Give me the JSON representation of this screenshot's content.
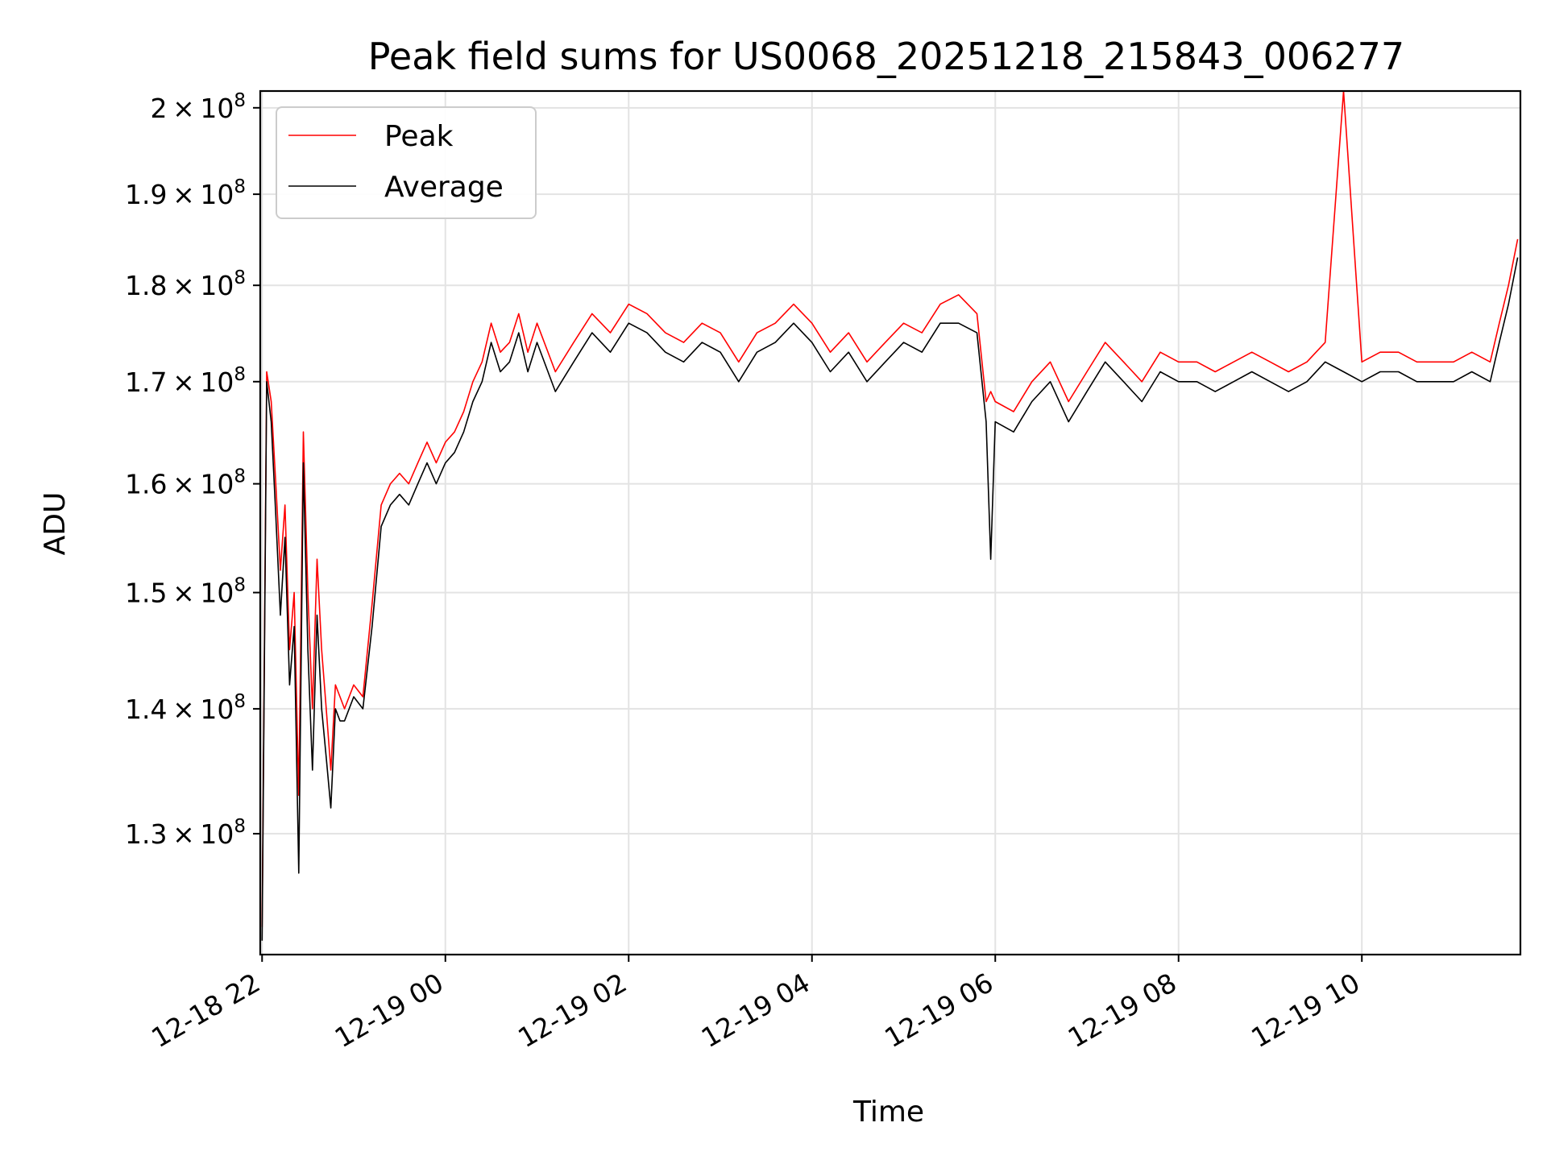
{
  "chart_data": {
    "type": "line",
    "title": "Peak field sums for US0068_20251218_215843_006277",
    "xlabel": "Time",
    "ylabel": "ADU",
    "yscale": "log",
    "ylim": [
      121000000,
      202000000
    ],
    "xlim_hours": [
      -0.02,
      13.73
    ],
    "grid": true,
    "legend_location": "top-left",
    "x_tick_labels": [
      "12-18 22",
      "12-19 00",
      "12-19 02",
      "12-19 04",
      "12-19 06",
      "12-19 08",
      "12-19 10"
    ],
    "x_tick_hours": [
      0,
      2,
      4,
      6,
      8,
      10,
      12
    ],
    "y_ticks": [
      {
        "value": 130000000,
        "mantissa": "1.3",
        "exponent": "8"
      },
      {
        "value": 140000000,
        "mantissa": "1.4",
        "exponent": "8"
      },
      {
        "value": 150000000,
        "mantissa": "1.5",
        "exponent": "8"
      },
      {
        "value": 160000000,
        "mantissa": "1.6",
        "exponent": "8"
      },
      {
        "value": 170000000,
        "mantissa": "1.7",
        "exponent": "8"
      },
      {
        "value": 180000000,
        "mantissa": "1.8",
        "exponent": "8"
      },
      {
        "value": 190000000,
        "mantissa": "1.9",
        "exponent": "8"
      },
      {
        "value": 200000000,
        "mantissa": "2",
        "exponent": "8"
      }
    ],
    "x_hours": [
      0.0,
      0.05,
      0.1,
      0.15,
      0.2,
      0.25,
      0.3,
      0.35,
      0.4,
      0.45,
      0.5,
      0.55,
      0.6,
      0.65,
      0.7,
      0.75,
      0.8,
      0.85,
      0.9,
      1.0,
      1.1,
      1.2,
      1.3,
      1.4,
      1.5,
      1.6,
      1.7,
      1.8,
      1.9,
      2.0,
      2.1,
      2.2,
      2.3,
      2.4,
      2.5,
      2.6,
      2.7,
      2.8,
      2.9,
      3.0,
      3.2,
      3.4,
      3.6,
      3.8,
      4.0,
      4.2,
      4.4,
      4.6,
      4.8,
      5.0,
      5.2,
      5.4,
      5.6,
      5.8,
      6.0,
      6.2,
      6.4,
      6.6,
      6.8,
      7.0,
      7.2,
      7.4,
      7.6,
      7.8,
      7.9,
      7.95,
      8.0,
      8.2,
      8.4,
      8.6,
      8.8,
      9.0,
      9.2,
      9.4,
      9.6,
      9.8,
      10.0,
      10.2,
      10.4,
      10.6,
      10.8,
      11.0,
      11.2,
      11.4,
      11.6,
      11.8,
      12.0,
      12.2,
      12.4,
      12.6,
      12.8,
      13.0,
      13.2,
      13.4,
      13.5,
      13.6,
      13.7
    ],
    "series": [
      {
        "name": "Peak",
        "color": "#ff0000",
        "values": [
          123000000,
          171000000,
          168000000,
          160000000,
          152000000,
          158000000,
          145000000,
          150000000,
          133000000,
          165000000,
          150000000,
          140000000,
          153000000,
          145000000,
          140000000,
          135000000,
          142000000,
          141000000,
          140000000,
          142000000,
          141000000,
          149000000,
          158000000,
          160000000,
          161000000,
          160000000,
          162000000,
          164000000,
          162000000,
          164000000,
          165000000,
          167000000,
          170000000,
          172000000,
          176000000,
          173000000,
          174000000,
          177000000,
          173000000,
          176000000,
          171000000,
          174000000,
          177000000,
          175000000,
          178000000,
          177000000,
          175000000,
          174000000,
          176000000,
          175000000,
          172000000,
          175000000,
          176000000,
          178000000,
          176000000,
          173000000,
          175000000,
          172000000,
          174000000,
          176000000,
          175000000,
          178000000,
          179000000,
          177000000,
          168000000,
          169000000,
          168000000,
          167000000,
          170000000,
          172000000,
          168000000,
          171000000,
          174000000,
          172000000,
          170000000,
          173000000,
          172000000,
          172000000,
          171000000,
          172000000,
          173000000,
          172000000,
          171000000,
          172000000,
          174000000,
          202000000,
          172000000,
          173000000,
          173000000,
          172000000,
          172000000,
          172000000,
          173000000,
          172000000,
          176000000,
          180000000,
          185000000
        ]
      },
      {
        "name": "Average",
        "color": "#000000",
        "values": [
          122000000,
          170000000,
          166000000,
          157000000,
          148000000,
          155000000,
          142000000,
          147000000,
          127000000,
          162000000,
          145000000,
          135000000,
          148000000,
          140000000,
          136000000,
          132000000,
          140000000,
          139000000,
          139000000,
          141000000,
          140000000,
          147000000,
          156000000,
          158000000,
          159000000,
          158000000,
          160000000,
          162000000,
          160000000,
          162000000,
          163000000,
          165000000,
          168000000,
          170000000,
          174000000,
          171000000,
          172000000,
          175000000,
          171000000,
          174000000,
          169000000,
          172000000,
          175000000,
          173000000,
          176000000,
          175000000,
          173000000,
          172000000,
          174000000,
          173000000,
          170000000,
          173000000,
          174000000,
          176000000,
          174000000,
          171000000,
          173000000,
          170000000,
          172000000,
          174000000,
          173000000,
          176000000,
          176000000,
          175000000,
          166000000,
          153000000,
          166000000,
          165000000,
          168000000,
          170000000,
          166000000,
          169000000,
          172000000,
          170000000,
          168000000,
          171000000,
          170000000,
          170000000,
          169000000,
          170000000,
          171000000,
          170000000,
          169000000,
          170000000,
          172000000,
          171000000,
          170000000,
          171000000,
          171000000,
          170000000,
          170000000,
          170000000,
          171000000,
          170000000,
          174000000,
          178000000,
          183000000
        ]
      }
    ]
  }
}
